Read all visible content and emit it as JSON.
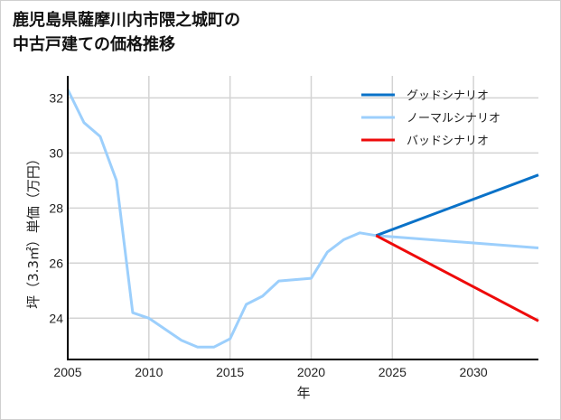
{
  "title_line1": "鹿児島県薩摩川内市隈之城町の",
  "title_line2": "中古戸建ての価格推移",
  "chart_data": {
    "type": "line",
    "title": "鹿児島県薩摩川内市隈之城町の中古戸建ての価格推移",
    "xlabel": "年",
    "ylabel": "坪（3.3㎡）単価（万円）",
    "xlim": [
      2005,
      2034
    ],
    "ylim": [
      22.5,
      32.8
    ],
    "x_ticks": [
      "2005",
      "2010",
      "2015",
      "2020",
      "2025",
      "2030"
    ],
    "y_ticks": [
      "24",
      "26",
      "28",
      "30",
      "32"
    ],
    "grid": true,
    "legend_position": "upper right",
    "series": [
      {
        "name": "グッドシナリオ",
        "color": "#0a72c8",
        "x": [
          2024,
          2034
        ],
        "values": [
          27.0,
          29.2
        ]
      },
      {
        "name": "ノーマルシナリオ",
        "color": "#9ccffc",
        "x": [
          2005,
          2006,
          2007,
          2008,
          2009,
          2010,
          2011,
          2012,
          2013,
          2014,
          2015,
          2016,
          2017,
          2018,
          2019,
          2020,
          2021,
          2022,
          2023,
          2024,
          2034
        ],
        "values": [
          32.3,
          31.1,
          30.6,
          29.0,
          24.2,
          24.0,
          23.6,
          23.2,
          22.95,
          22.95,
          23.25,
          24.5,
          24.8,
          25.35,
          25.4,
          25.45,
          26.4,
          26.85,
          27.1,
          27.0,
          26.55
        ]
      },
      {
        "name": "バッドシナリオ",
        "color": "#ee0a0a",
        "x": [
          2024,
          2034
        ],
        "values": [
          27.0,
          23.9
        ]
      }
    ]
  }
}
